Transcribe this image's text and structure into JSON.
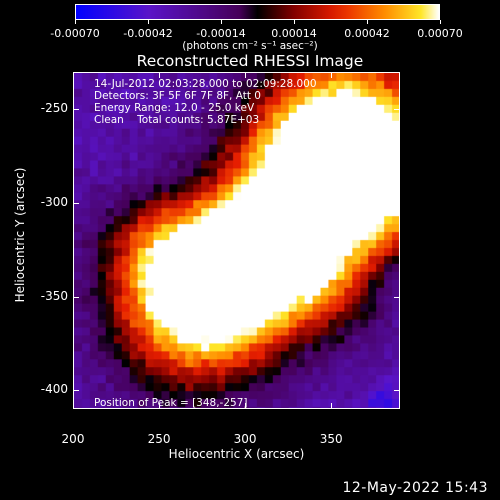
{
  "colorbar": {
    "tick_labels": [
      "-0.00070",
      "-0.00042",
      "-0.00014",
      "0.00014",
      "0.00042",
      "0.00070"
    ],
    "units": "(photons cm⁻² s⁻¹ asec⁻²)"
  },
  "title": "Reconstructed RHESSI Image",
  "info": {
    "line1": "14-Jul-2012 02:03:28.000 to 02:09:28.000",
    "line2": "Detectors: 3F 5F 6F 7F 8F, Att 0",
    "line3": "Energy Range: 12.0 - 25.0 keV",
    "line4": "Clean    Total counts: 5.87E+03",
    "peak": "Position of Peak = [348,-257]"
  },
  "axes": {
    "ylabel": "Heliocentric Y (arcsec)",
    "xlabel": "Heliocentric X (arcsec)",
    "y_ticks": [
      "-250",
      "-300",
      "-350",
      "-400"
    ],
    "x_ticks": [
      "200",
      "250",
      "300",
      "350"
    ],
    "xlim": [
      200,
      390
    ],
    "ylim": [
      -410,
      -230
    ]
  },
  "footer": {
    "timestamp": "12-May-2022 15:43"
  },
  "colors": {
    "background": "#000000",
    "low": "#0000ff",
    "mid": "#000000",
    "high": "#ffffff"
  }
}
